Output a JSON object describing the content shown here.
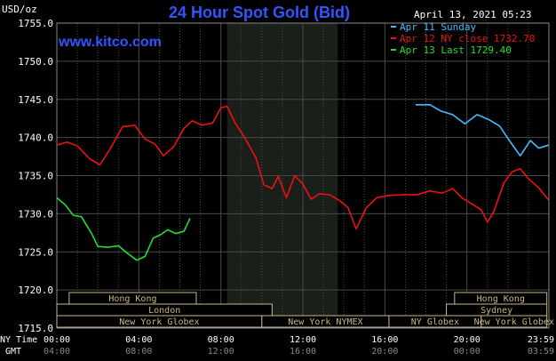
{
  "chart_data": {
    "type": "line",
    "title": "24 Hour Spot Gold (Bid)",
    "timestamp": "April 13, 2021 05:23",
    "watermark": "www.kitco.com",
    "ylabel": "USD/oz",
    "ylim": [
      1715,
      1755
    ],
    "yticks": [
      "1755.0",
      "1750.0",
      "1745.0",
      "1740.0",
      "1735.0",
      "1730.0",
      "1725.0",
      "1720.0",
      "1715.0"
    ],
    "xlim": [
      0,
      24
    ],
    "x_row_labels": {
      "ny": "NY Time",
      "gmt": "GMT"
    },
    "x_ticks_ny": [
      "00:00",
      "04:00",
      "08:00",
      "12:00",
      "16:00",
      "20:00",
      "23:59"
    ],
    "x_ticks_gmt": [
      "04:00",
      "08:00",
      "12:00",
      "16:00",
      "20:00",
      "00:00",
      "03:59"
    ],
    "x_tick_hours": [
      0,
      4,
      8,
      12,
      16,
      20,
      23.98
    ],
    "grid": true,
    "shaded_region": [
      8.3,
      13.7
    ],
    "colors": {
      "background": "#000000",
      "grid": "#4a4a4a",
      "axis_text": "#ffffff",
      "title": "#3355ff",
      "shade": "#1a1f1a",
      "market_bar": "#c8b888"
    },
    "legend_position": "top-right",
    "series": [
      {
        "name": "Apr 11 Sunday",
        "color": "#44bbff",
        "points": [
          [
            17.5,
            1744.3
          ],
          [
            18.2,
            1744.3
          ],
          [
            18.7,
            1743.5
          ],
          [
            19.3,
            1743.0
          ],
          [
            19.9,
            1741.8
          ],
          [
            20.5,
            1743.0
          ],
          [
            21.1,
            1742.3
          ],
          [
            21.6,
            1741.5
          ],
          [
            22.1,
            1739.5
          ],
          [
            22.6,
            1737.6
          ],
          [
            23.1,
            1739.6
          ],
          [
            23.5,
            1738.6
          ],
          [
            23.98,
            1739.0
          ]
        ]
      },
      {
        "name": "Apr 12 NY close 1732.70",
        "color": "#ee1111",
        "points": [
          [
            0,
            1739.0
          ],
          [
            0.5,
            1739.4
          ],
          [
            1.0,
            1738.9
          ],
          [
            1.6,
            1737.2
          ],
          [
            2.1,
            1736.4
          ],
          [
            2.6,
            1738.5
          ],
          [
            3.2,
            1741.4
          ],
          [
            3.8,
            1741.6
          ],
          [
            4.3,
            1739.8
          ],
          [
            4.8,
            1739.1
          ],
          [
            5.2,
            1737.6
          ],
          [
            5.7,
            1738.8
          ],
          [
            6.2,
            1741.2
          ],
          [
            6.6,
            1742.2
          ],
          [
            7.1,
            1741.6
          ],
          [
            7.6,
            1741.9
          ],
          [
            8.0,
            1743.9
          ],
          [
            8.3,
            1744.1
          ],
          [
            8.7,
            1741.9
          ],
          [
            9.2,
            1739.8
          ],
          [
            9.7,
            1737.4
          ],
          [
            10.1,
            1733.8
          ],
          [
            10.5,
            1733.3
          ],
          [
            10.8,
            1734.9
          ],
          [
            11.2,
            1732.1
          ],
          [
            11.6,
            1735.0
          ],
          [
            12.0,
            1733.9
          ],
          [
            12.4,
            1731.9
          ],
          [
            12.8,
            1732.6
          ],
          [
            13.3,
            1732.5
          ],
          [
            13.8,
            1731.7
          ],
          [
            14.2,
            1730.8
          ],
          [
            14.6,
            1728.0
          ],
          [
            15.1,
            1730.8
          ],
          [
            15.6,
            1732.1
          ],
          [
            16.2,
            1732.4
          ],
          [
            17.0,
            1732.5
          ],
          [
            17.6,
            1732.5
          ],
          [
            18.2,
            1733.0
          ],
          [
            18.8,
            1732.7
          ],
          [
            19.3,
            1733.3
          ],
          [
            19.8,
            1732.0
          ],
          [
            20.3,
            1731.2
          ],
          [
            20.7,
            1730.5
          ],
          [
            21.0,
            1728.9
          ],
          [
            21.3,
            1730.2
          ],
          [
            21.8,
            1734.0
          ],
          [
            22.2,
            1735.5
          ],
          [
            22.6,
            1735.9
          ],
          [
            23.0,
            1734.6
          ],
          [
            23.5,
            1733.4
          ],
          [
            23.98,
            1731.8
          ]
        ]
      },
      {
        "name": "Apr 13 Last 1729.40",
        "color": "#22dd33",
        "points": [
          [
            0,
            1732.1
          ],
          [
            0.4,
            1731.2
          ],
          [
            0.8,
            1729.8
          ],
          [
            1.2,
            1729.6
          ],
          [
            1.7,
            1727.4
          ],
          [
            2.0,
            1725.7
          ],
          [
            2.5,
            1725.6
          ],
          [
            3.0,
            1725.8
          ],
          [
            3.4,
            1724.9
          ],
          [
            3.9,
            1723.9
          ],
          [
            4.3,
            1724.4
          ],
          [
            4.7,
            1726.8
          ],
          [
            5.1,
            1727.3
          ],
          [
            5.4,
            1727.9
          ],
          [
            5.8,
            1727.4
          ],
          [
            6.2,
            1727.7
          ],
          [
            6.5,
            1729.4
          ]
        ]
      }
    ]
  },
  "markets": {
    "row1": [
      {
        "label": "Hong Kong",
        "start": 0.6,
        "end": 6.8
      },
      {
        "label": "Hong Kong",
        "start": 19.4,
        "end": 23.9
      }
    ],
    "row2": [
      {
        "label": "London",
        "start": 0,
        "end": 10.5
      },
      {
        "label": "Sydney",
        "start": 19.0,
        "end": 23.9
      }
    ],
    "row3": [
      {
        "label": "New York Globex",
        "start": 0,
        "end": 10.0
      },
      {
        "label": "New York NYMEX",
        "start": 10.0,
        "end": 16.2
      },
      {
        "label": "NY Globex",
        "start": 16.2,
        "end": 20.7
      },
      {
        "label": "New York Globex",
        "start": 20.7,
        "end": 23.9
      }
    ]
  }
}
